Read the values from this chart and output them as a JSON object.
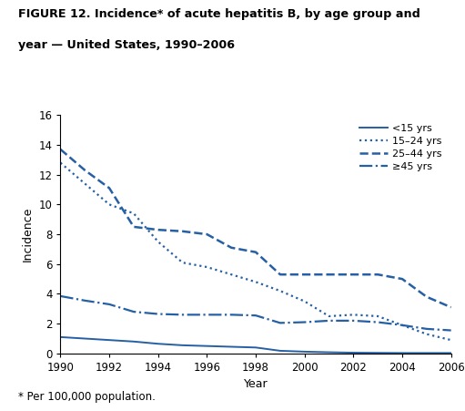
{
  "title_line1": "FIGURE 12. Incidence* of acute hepatitis B, by age group and",
  "title_line2": "year — United States, 1990–2006",
  "footnote": "* Per 100,000 population.",
  "xlabel": "Year",
  "ylabel": "Incidence",
  "line_color": "#2660a4",
  "background_color": "#ffffff",
  "years": [
    1990,
    1991,
    1992,
    1993,
    1994,
    1995,
    1996,
    1997,
    1998,
    1999,
    2000,
    2001,
    2002,
    2003,
    2004,
    2005,
    2006
  ],
  "series": {
    "<15 yrs": [
      1.1,
      1.0,
      0.9,
      0.8,
      0.65,
      0.55,
      0.5,
      0.45,
      0.4,
      0.18,
      0.12,
      0.08,
      0.05,
      0.04,
      0.03,
      0.03,
      0.03
    ],
    "15–24 yrs": [
      12.8,
      11.4,
      10.0,
      9.4,
      7.5,
      6.1,
      5.8,
      5.3,
      4.8,
      4.2,
      3.5,
      2.5,
      2.6,
      2.5,
      1.9,
      1.3,
      0.9
    ],
    "25–44 yrs": [
      13.7,
      12.3,
      11.1,
      8.5,
      8.3,
      8.2,
      8.0,
      7.1,
      6.8,
      5.3,
      5.3,
      5.3,
      5.3,
      5.3,
      5.0,
      3.8,
      3.1
    ],
    "≥45 yrs": [
      3.85,
      3.55,
      3.3,
      2.8,
      2.65,
      2.6,
      2.6,
      2.6,
      2.55,
      2.05,
      2.1,
      2.2,
      2.2,
      2.1,
      1.9,
      1.65,
      1.55
    ]
  },
  "linestyles": {
    "<15 yrs": "solid",
    "15–24 yrs": "dotted",
    "25–44 yrs": "dashed",
    "≥45 yrs": "dashdot"
  },
  "linewidths": {
    "<15 yrs": 1.4,
    "15–24 yrs": 1.6,
    "25–44 yrs": 1.8,
    "≥45 yrs": 1.6
  },
  "ylim": [
    0,
    16
  ],
  "yticks": [
    0,
    2,
    4,
    6,
    8,
    10,
    12,
    14,
    16
  ],
  "xticks": [
    1990,
    1992,
    1994,
    1996,
    1998,
    2000,
    2002,
    2004,
    2006
  ],
  "legend_labels": [
    "<15 yrs",
    "15–24 yrs",
    "25–44 yrs",
    "≥45 yrs"
  ]
}
